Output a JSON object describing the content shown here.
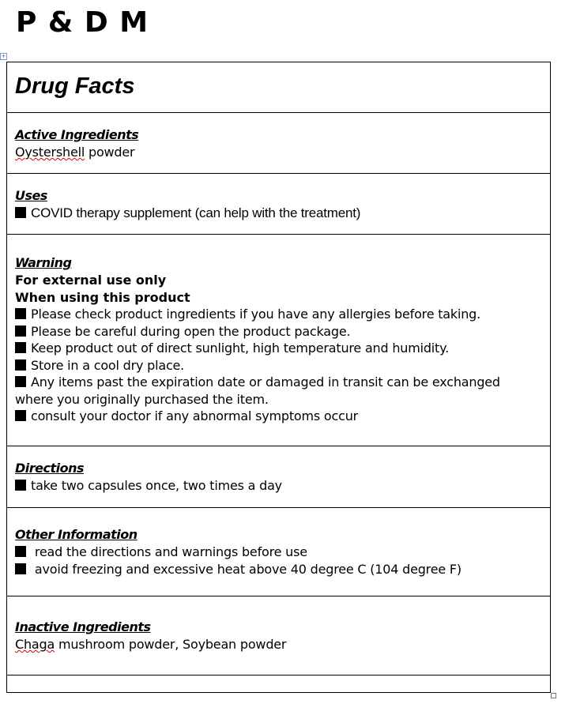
{
  "brand": "P & D M",
  "title": "Drug Facts",
  "active": {
    "heading": "Active Ingredients",
    "misspelled": "Oystershell",
    "rest": " powder"
  },
  "uses": {
    "heading": "Uses",
    "items": [
      "COVID therapy supplement  (can help with the treatment)"
    ]
  },
  "warning": {
    "heading": "Warning",
    "line1": "For external use only",
    "line2": "When using this product",
    "items": [
      "Please check product ingredients if you have any allergies before taking.",
      "Please be careful during open the product package.",
      "Keep product out of direct sunlight, high temperature and humidity.",
      "Store in a cool dry place.",
      "Any items past the expiration date or damaged in transit can be exchanged where you originally purchased the item.",
      "consult your doctor if any abnormal symptoms occur"
    ]
  },
  "directions": {
    "heading": "Directions",
    "items": [
      "take two capsules once, two times a day"
    ]
  },
  "other": {
    "heading": "Other Information",
    "items": [
      " read the directions and warnings before use",
      " avoid freezing and excessive heat above 40 degree C (104 degree F)"
    ]
  },
  "inactive": {
    "heading": "Inactive Ingredients",
    "misspelled": "Chaga",
    "rest": " mushroom powder, Soybean powder"
  }
}
